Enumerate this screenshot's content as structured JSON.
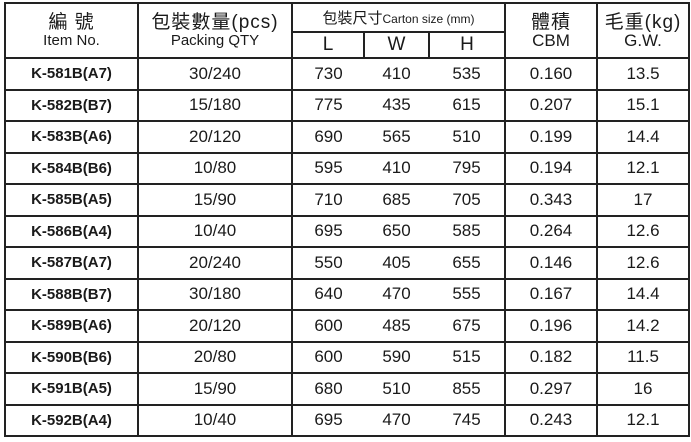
{
  "header": {
    "item": {
      "cn": "編 號",
      "en": "Item No."
    },
    "packing": {
      "cn": "包裝數量(pcs)",
      "en": "Packing QTY"
    },
    "carton": {
      "cn": "包裝尺寸",
      "en": "Carton size (mm)",
      "l": "L",
      "w": "W",
      "h": "H"
    },
    "cbm": {
      "cn": "體積",
      "en": "CBM"
    },
    "gw": {
      "cn": "毛重(kg)",
      "en": "G.W."
    }
  },
  "rows": [
    {
      "item": "K-581B(A7)",
      "qty": "30/240",
      "l": "730",
      "w": "410",
      "h": "535",
      "cbm": "0.160",
      "gw": "13.5"
    },
    {
      "item": "K-582B(B7)",
      "qty": "15/180",
      "l": "775",
      "w": "435",
      "h": "615",
      "cbm": "0.207",
      "gw": "15.1"
    },
    {
      "item": "K-583B(A6)",
      "qty": "20/120",
      "l": "690",
      "w": "565",
      "h": "510",
      "cbm": "0.199",
      "gw": "14.4"
    },
    {
      "item": "K-584B(B6)",
      "qty": "10/80",
      "l": "595",
      "w": "410",
      "h": "795",
      "cbm": "0.194",
      "gw": "12.1"
    },
    {
      "item": "K-585B(A5)",
      "qty": "15/90",
      "l": "710",
      "w": "685",
      "h": "705",
      "cbm": "0.343",
      "gw": "17"
    },
    {
      "item": "K-586B(A4)",
      "qty": "10/40",
      "l": "695",
      "w": "650",
      "h": "585",
      "cbm": "0.264",
      "gw": "12.6"
    },
    {
      "item": "K-587B(A7)",
      "qty": "20/240",
      "l": "550",
      "w": "405",
      "h": "655",
      "cbm": "0.146",
      "gw": "12.6"
    },
    {
      "item": "K-588B(B7)",
      "qty": "30/180",
      "l": "640",
      "w": "470",
      "h": "555",
      "cbm": "0.167",
      "gw": "14.4"
    },
    {
      "item": "K-589B(A6)",
      "qty": "20/120",
      "l": "600",
      "w": "485",
      "h": "675",
      "cbm": "0.196",
      "gw": "14.2"
    },
    {
      "item": "K-590B(B6)",
      "qty": "20/80",
      "l": "600",
      "w": "590",
      "h": "515",
      "cbm": "0.182",
      "gw": "11.5"
    },
    {
      "item": "K-591B(A5)",
      "qty": "15/90",
      "l": "680",
      "w": "510",
      "h": "855",
      "cbm": "0.297",
      "gw": "16"
    },
    {
      "item": "K-592B(A4)",
      "qty": "10/40",
      "l": "695",
      "w": "470",
      "h": "745",
      "cbm": "0.243",
      "gw": "12.1"
    }
  ]
}
